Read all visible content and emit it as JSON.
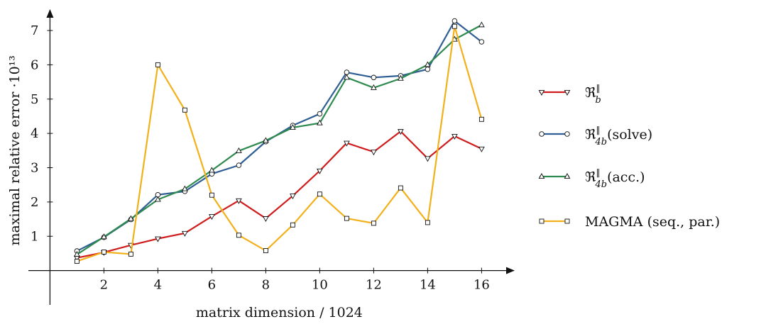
{
  "chart_data": {
    "type": "line",
    "xlabel": "matrix dimension / 1024",
    "ylabel": "maximal relative error ·10¹³",
    "xlim": [
      -0.8,
      17.2
    ],
    "ylim": [
      -1.0,
      7.6
    ],
    "x_ticks": [
      2,
      4,
      6,
      8,
      10,
      12,
      14,
      16
    ],
    "y_ticks": [
      1,
      2,
      3,
      4,
      5,
      6,
      7
    ],
    "x": [
      1,
      2,
      3,
      4,
      5,
      6,
      7,
      8,
      9,
      10,
      11,
      12,
      13,
      14,
      15,
      16
    ],
    "grid": false,
    "legend_position": "right",
    "series": [
      {
        "name": "ℜᵇ‖",
        "legend_base": "ℜ",
        "legend_sub": "b",
        "legend_sup": "‖",
        "legend_suffix": "",
        "color": "#d01c1c",
        "marker": "triangle-down",
        "values": [
          0.37,
          0.53,
          0.74,
          0.93,
          1.09,
          1.58,
          2.04,
          1.52,
          2.18,
          2.91,
          3.72,
          3.46,
          4.06,
          3.27,
          3.92,
          3.55
        ]
      },
      {
        "name": "ℜ₄ᵇ‖(solve)",
        "legend_base": "ℜ",
        "legend_sub": "4b",
        "legend_sup": "‖",
        "legend_suffix": "(solve)",
        "color": "#2f5f95",
        "marker": "circle",
        "values": [
          0.57,
          0.97,
          1.49,
          2.21,
          2.31,
          2.82,
          3.07,
          3.76,
          4.23,
          4.57,
          5.78,
          5.63,
          5.68,
          5.87,
          7.28,
          6.67
        ]
      },
      {
        "name": "ℜ₄ᵇ‖(acc.)",
        "legend_base": "ℜ",
        "legend_sub": "4b",
        "legend_sup": "‖",
        "legend_suffix": "(acc.)",
        "color": "#2e8a4e",
        "marker": "triangle-up",
        "values": [
          0.47,
          0.98,
          1.51,
          2.07,
          2.38,
          2.92,
          3.49,
          3.79,
          4.17,
          4.3,
          5.63,
          5.33,
          5.6,
          6.0,
          6.74,
          7.16
        ]
      },
      {
        "name": "MAGMA (seq., par.)",
        "legend_base": "MAGMA (seq., par.)",
        "legend_sub": "",
        "legend_sup": "",
        "legend_suffix": "",
        "color": "#f2b11b",
        "marker": "square",
        "values": [
          0.27,
          0.54,
          0.48,
          6.0,
          4.68,
          2.2,
          1.03,
          0.58,
          1.33,
          2.23,
          1.52,
          1.38,
          2.41,
          1.4,
          7.12,
          4.41
        ]
      }
    ]
  }
}
